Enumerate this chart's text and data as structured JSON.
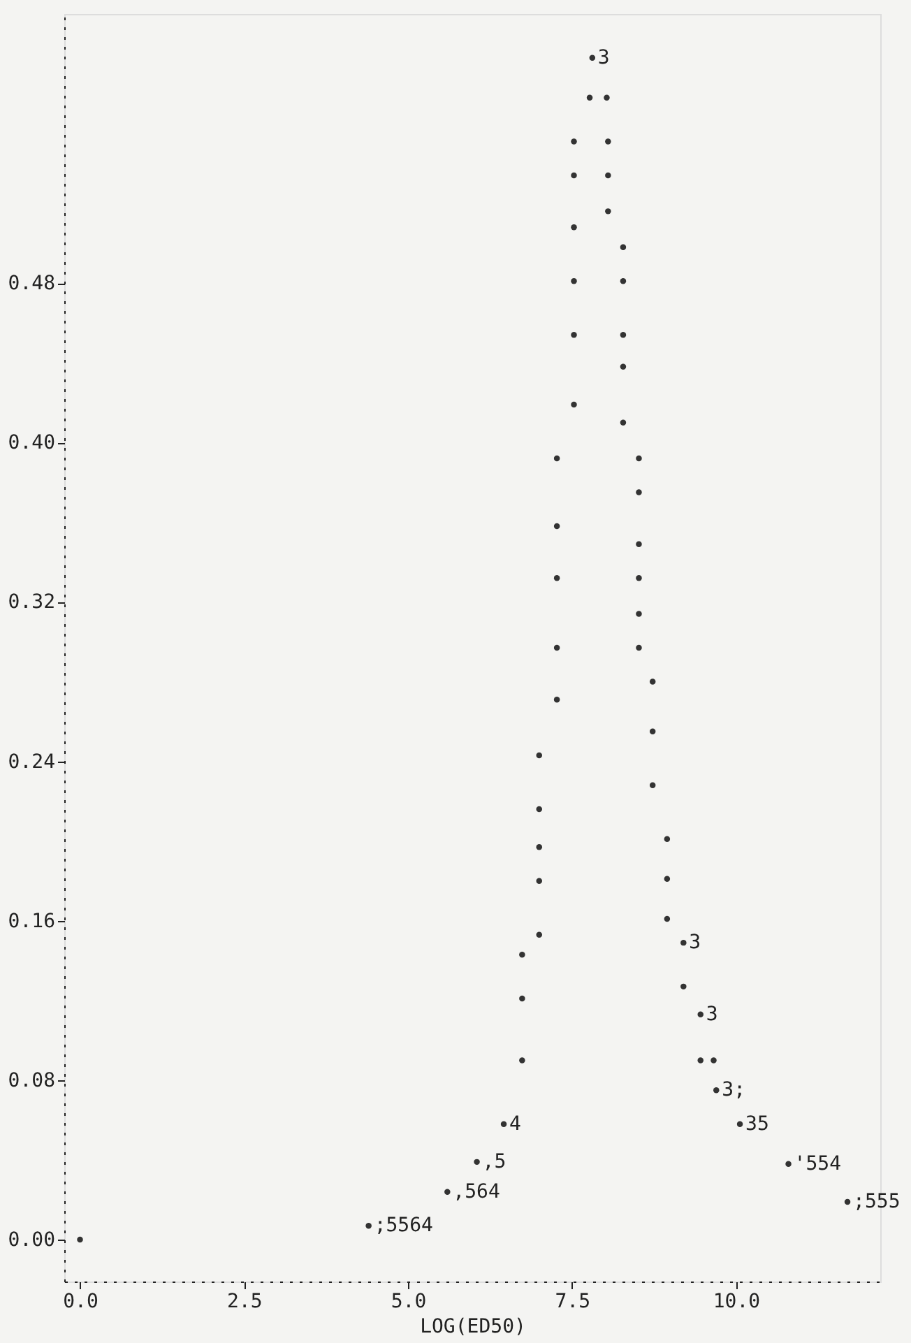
{
  "chart_data": {
    "type": "scatter",
    "xlabel": "LOG(ED50)",
    "xlim": [
      -0.24,
      12.2
    ],
    "ylim": [
      -0.021,
      0.615
    ],
    "xticks": [
      {
        "value": 0,
        "label": "0.0"
      },
      {
        "value": 2.5,
        "label": "2.5"
      },
      {
        "value": 5,
        "label": "5.0"
      },
      {
        "value": 7.5,
        "label": "7.5"
      },
      {
        "value": 10,
        "label": "10.0"
      }
    ],
    "yticks": [
      {
        "value": 0,
        "label": "0.00"
      },
      {
        "value": 0.08,
        "label": "0.08"
      },
      {
        "value": 0.16,
        "label": "0.16"
      },
      {
        "value": 0.24,
        "label": "0.24"
      },
      {
        "value": 0.32,
        "label": "0.32"
      },
      {
        "value": 0.4,
        "label": "0.40"
      },
      {
        "value": 0.48,
        "label": "0.48"
      }
    ],
    "grid": false,
    "marker": "circle",
    "series": [
      {
        "color": "#333333",
        "x": [
          0,
          4.4,
          5.6,
          6.05,
          6.46,
          6.74,
          6.74,
          6.74,
          7.0,
          7.0,
          7.0,
          7.0,
          7.0,
          7.27,
          7.27,
          7.27,
          7.27,
          7.27,
          7.53,
          7.53,
          7.53,
          7.53,
          7.53,
          7.53,
          7.77,
          7.81,
          8.03,
          8.05,
          8.05,
          8.05,
          8.28,
          8.28,
          8.28,
          8.28,
          8.28,
          8.52,
          8.52,
          8.52,
          8.52,
          8.52,
          8.52,
          8.73,
          8.73,
          8.73,
          8.95,
          8.95,
          8.95,
          9.2,
          9.2,
          9.46,
          9.46,
          9.66,
          9.7,
          10.06,
          10.8,
          11.7
        ],
        "values": [
          0,
          0.007,
          0.024,
          0.039,
          0.058,
          0.09,
          0.121,
          0.143,
          0.153,
          0.18,
          0.197,
          0.216,
          0.243,
          0.271,
          0.297,
          0.332,
          0.358,
          0.392,
          0.419,
          0.454,
          0.481,
          0.508,
          0.534,
          0.551,
          0.573,
          0.593,
          0.573,
          0.551,
          0.534,
          0.516,
          0.498,
          0.481,
          0.454,
          0.438,
          0.41,
          0.392,
          0.375,
          0.349,
          0.332,
          0.314,
          0.297,
          0.28,
          0.255,
          0.228,
          0.201,
          0.181,
          0.161,
          0.149,
          0.127,
          0.113,
          0.09,
          0.09,
          0.075,
          0.058,
          0.038,
          0.019
        ],
        "name": null
      }
    ],
    "annotations": [
      {
        "text": "3",
        "x": 7.81,
        "y": 0.593
      },
      {
        "text": "3",
        "x": 9.2,
        "y": 0.149
      },
      {
        "text": "3",
        "x": 9.46,
        "y": 0.113
      },
      {
        "text": "3;",
        "x": 9.7,
        "y": 0.075
      },
      {
        "text": "35",
        "x": 10.06,
        "y": 0.058
      },
      {
        "text": "4",
        "x": 6.46,
        "y": 0.058
      },
      {
        "text": ",5",
        "x": 6.05,
        "y": 0.039
      },
      {
        "text": ",564",
        "x": 5.6,
        "y": 0.024
      },
      {
        "text": ";5564",
        "x": 4.4,
        "y": 0.007
      },
      {
        "text": "'554",
        "x": 10.8,
        "y": 0.038
      },
      {
        "text": ";555",
        "x": 11.7,
        "y": 0.019
      }
    ]
  }
}
